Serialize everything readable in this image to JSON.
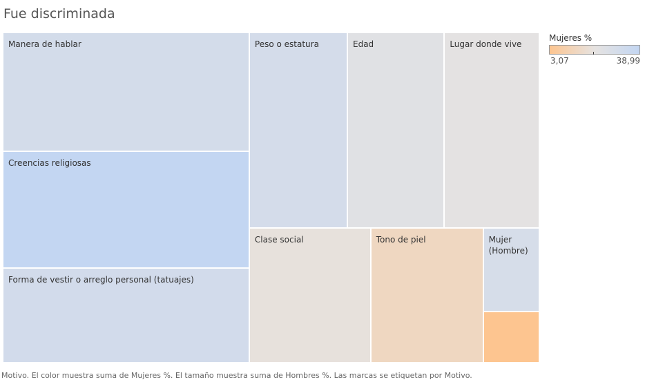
{
  "title": "Fue discriminada",
  "caption": "Motivo.  El color muestra suma de Mujeres %.  El tamaño muestra suma de Hombres %.  Las marcas se etiquetan por Motivo.",
  "legend": {
    "title": "Mujeres %",
    "min_label": "3,07",
    "max_label": "38,99",
    "min": 3.07,
    "max": 38.99,
    "marker_value": 20.5,
    "color_low": "#fdc590",
    "color_mid": "#e6e3e1",
    "color_high": "#c3d6f2"
  },
  "chart_data": {
    "type": "treemap",
    "title": "Fue discriminada",
    "size_measure": "Hombres %",
    "color_measure": "Mujeres %",
    "color_range": [
      3.07,
      38.99
    ],
    "items": [
      {
        "label": "Manera de hablar",
        "size": 24.4,
        "color_value": 31.0
      },
      {
        "label": "Creencias religiosas",
        "size": 24.0,
        "color_value": 38.99
      },
      {
        "label": "Forma de vestir o arreglo personal (tatuajes)",
        "size": 19.4,
        "color_value": 31.5
      },
      {
        "label": "Peso o estatura",
        "size": 16.0,
        "color_value": 30.5
      },
      {
        "label": "Edad",
        "size": 15.8,
        "color_value": 24.0
      },
      {
        "label": "Lugar donde vive",
        "size": 15.5,
        "color_value": 22.0
      },
      {
        "label": "Clase social",
        "size": 13.6,
        "color_value": 20.0
      },
      {
        "label": "Tono de piel",
        "size": 12.6,
        "color_value": 14.0
      },
      {
        "label": "Mujer\n(Hombre)",
        "size": 3.9,
        "color_value": 29.0
      },
      {
        "label": "",
        "size": 2.4,
        "color_value": 3.07
      }
    ]
  }
}
